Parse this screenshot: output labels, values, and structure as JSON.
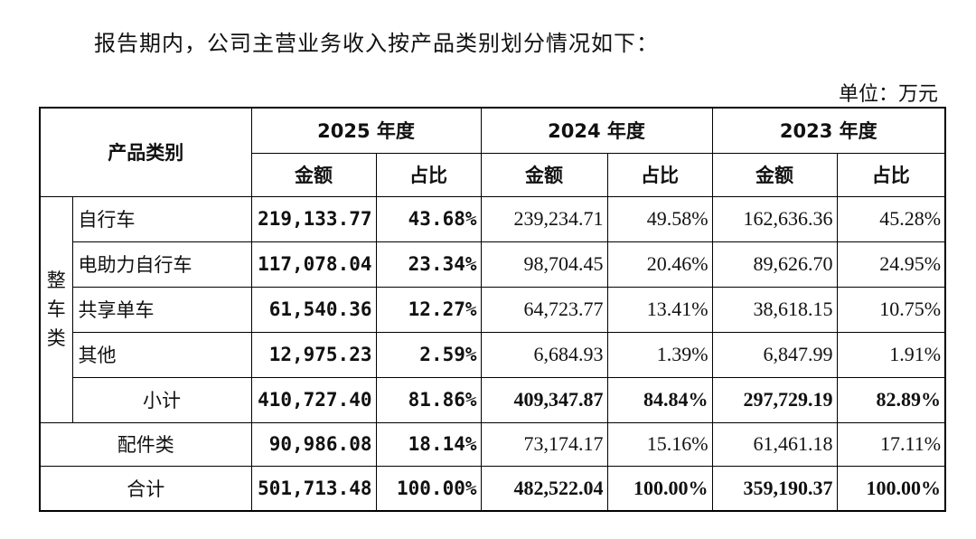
{
  "intro_text": "报告期内，公司主营业务收入按产品类别划分情况如下：",
  "unit_text": "单位：万元",
  "header": {
    "category": "产品类别",
    "years": [
      "2025 年度",
      "2024 年度",
      "2023 年度"
    ],
    "amount": "金额",
    "share": "占比"
  },
  "group_label": [
    "整",
    "车",
    "类"
  ],
  "rows": [
    {
      "name": "自行车",
      "v": [
        "219,133.77",
        "43.68%",
        "239,234.71",
        "49.58%",
        "162,636.36",
        "45.28%"
      ]
    },
    {
      "name": "电助力自行车",
      "v": [
        "117,078.04",
        "23.34%",
        "98,704.45",
        "20.46%",
        "89,626.70",
        "24.95%"
      ]
    },
    {
      "name": "共享单车",
      "v": [
        "61,540.36",
        "12.27%",
        "64,723.77",
        "13.41%",
        "38,618.15",
        "10.75%"
      ]
    },
    {
      "name": "其他",
      "v": [
        "12,975.23",
        "2.59%",
        "6,684.93",
        "1.39%",
        "6,847.99",
        "1.91%"
      ]
    }
  ],
  "subtotal": {
    "name": "小计",
    "v": [
      "410,727.40",
      "81.86%",
      "409,347.87",
      "84.84%",
      "297,729.19",
      "82.89%"
    ]
  },
  "parts": {
    "name": "配件类",
    "v": [
      "90,986.08",
      "18.14%",
      "73,174.17",
      "15.16%",
      "61,461.18",
      "17.11%"
    ]
  },
  "total": {
    "name": "合计",
    "v": [
      "501,713.48",
      "100.00%",
      "482,522.04",
      "100.00%",
      "359,190.37",
      "100.00%"
    ]
  }
}
